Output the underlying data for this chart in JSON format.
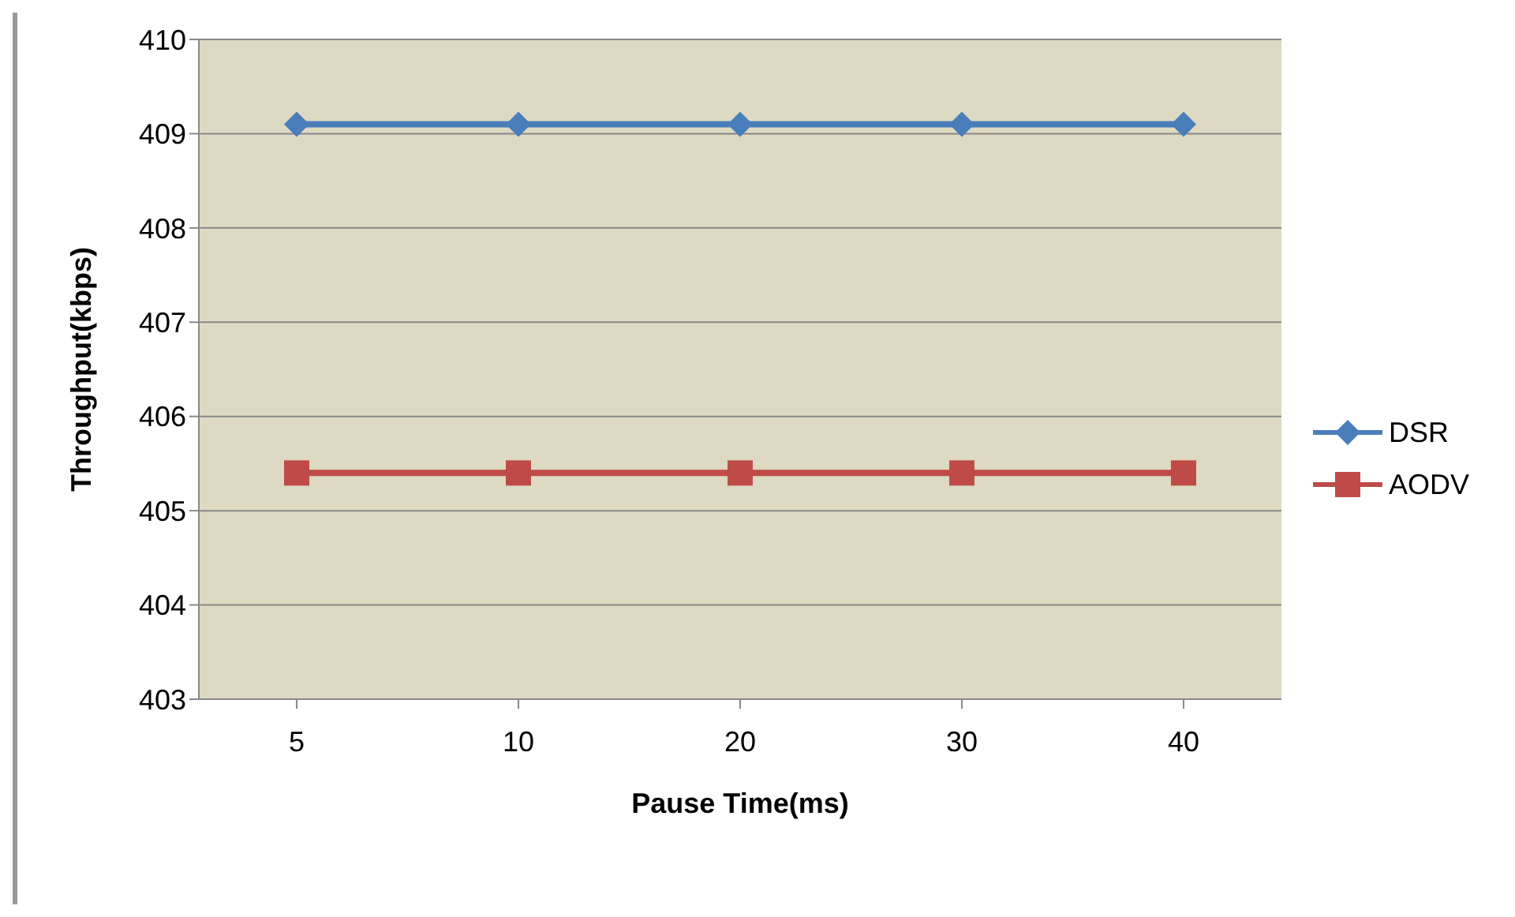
{
  "chart_data": {
    "type": "line",
    "xlabel": "Pause Time(ms)",
    "ylabel": "Throughput(kbps)",
    "categories": [
      "5",
      "10",
      "20",
      "30",
      "40"
    ],
    "series": [
      {
        "name": "DSR",
        "color": "#4a7ebb",
        "values": [
          409.1,
          409.1,
          409.1,
          409.1,
          409.1
        ],
        "marker": "diamond"
      },
      {
        "name": "AODV",
        "color": "#be4b48",
        "values": [
          405.4,
          405.4,
          405.4,
          405.4,
          405.4
        ],
        "marker": "square"
      }
    ],
    "ylim": [
      403,
      410
    ],
    "yticks": [
      403,
      404,
      405,
      406,
      407,
      408,
      409,
      410
    ],
    "grid": "y",
    "legend": "right"
  }
}
